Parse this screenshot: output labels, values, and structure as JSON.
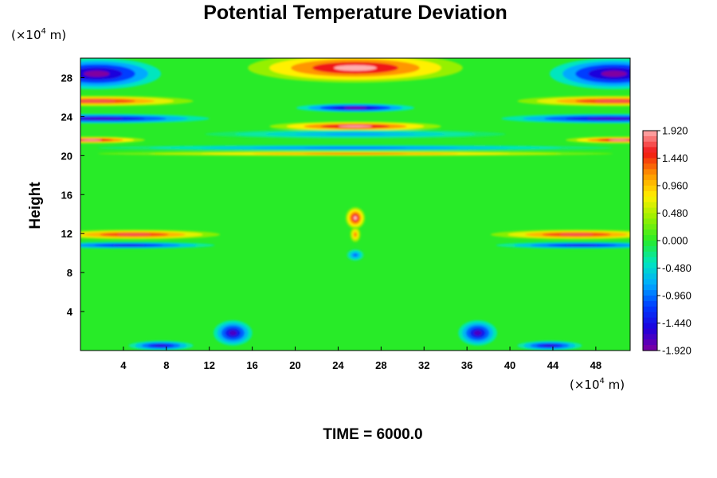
{
  "chart_data": {
    "type": "heatmap",
    "title": "Potential Temperature Deviation",
    "ylabel": "Height",
    "xlabel": "",
    "x_unit": {
      "prefix": "(×10",
      "exp": "4",
      "suffix": " m)"
    },
    "y_unit": {
      "prefix": "(×10",
      "exp": "4",
      "suffix": " m)"
    },
    "xlim": [
      0,
      51.2
    ],
    "ylim": [
      0,
      30
    ],
    "xticks": [
      "4",
      "8",
      "12",
      "16",
      "20",
      "24",
      "28",
      "32",
      "36",
      "40",
      "44",
      "48"
    ],
    "yticks": [
      "4",
      "8",
      "12",
      "16",
      "20",
      "24",
      "28"
    ],
    "colorbar": {
      "range": [
        -1.92,
        1.92
      ],
      "labels": [
        "1.920",
        "1.440",
        "0.960",
        "0.480",
        "0.000",
        "-0.480",
        "-0.960",
        "-1.440",
        "-1.920"
      ]
    },
    "background_value": 0.0,
    "features": [
      {
        "x": 25.6,
        "y": 29.0,
        "rx": 10.0,
        "ry": 1.5,
        "value": 1.92
      },
      {
        "x": 25.6,
        "y": 24.9,
        "rx": 5.5,
        "ry": 0.45,
        "value": -1.9
      },
      {
        "x": 25.6,
        "y": 23.0,
        "rx": 8.0,
        "ry": 0.5,
        "value": 1.92
      },
      {
        "x": 25.6,
        "y": 22.2,
        "rx": 14.0,
        "ry": 0.45,
        "value": -0.8
      },
      {
        "x": 1.5,
        "y": 28.4,
        "rx": 6.0,
        "ry": 1.6,
        "value": -1.92
      },
      {
        "x": 49.7,
        "y": 28.4,
        "rx": 6.0,
        "ry": 1.6,
        "value": -1.92
      },
      {
        "x": 1.5,
        "y": 25.6,
        "rx": 9.0,
        "ry": 0.55,
        "value": 1.7
      },
      {
        "x": 49.7,
        "y": 25.6,
        "rx": 9.0,
        "ry": 0.55,
        "value": 1.7
      },
      {
        "x": 2.0,
        "y": 23.8,
        "rx": 10.0,
        "ry": 0.5,
        "value": -1.7
      },
      {
        "x": 49.2,
        "y": 23.8,
        "rx": 10.0,
        "ry": 0.5,
        "value": -1.7
      },
      {
        "x": 1.0,
        "y": 21.6,
        "rx": 5.0,
        "ry": 0.35,
        "value": 1.92
      },
      {
        "x": 50.2,
        "y": 21.6,
        "rx": 5.0,
        "ry": 0.35,
        "value": 1.92
      },
      {
        "x": 25.6,
        "y": 20.8,
        "rx": 24.0,
        "ry": 0.3,
        "value": -1.0
      },
      {
        "x": 25.6,
        "y": 20.2,
        "rx": 24.0,
        "ry": 0.25,
        "value": 1.3
      },
      {
        "x": 5.0,
        "y": 11.9,
        "rx": 8.0,
        "ry": 0.5,
        "value": 1.7
      },
      {
        "x": 46.2,
        "y": 11.9,
        "rx": 8.0,
        "ry": 0.5,
        "value": 1.7
      },
      {
        "x": 4.5,
        "y": 10.8,
        "rx": 8.0,
        "ry": 0.35,
        "value": -1.5
      },
      {
        "x": 46.7,
        "y": 10.8,
        "rx": 8.0,
        "ry": 0.35,
        "value": -1.5
      },
      {
        "x": 25.6,
        "y": 13.6,
        "rx": 0.9,
        "ry": 1.1,
        "value": 1.92
      },
      {
        "x": 25.6,
        "y": 11.9,
        "rx": 0.5,
        "ry": 0.8,
        "value": 1.2
      },
      {
        "x": 25.6,
        "y": 9.8,
        "rx": 0.8,
        "ry": 0.6,
        "value": -1.0
      },
      {
        "x": 14.2,
        "y": 1.8,
        "rx": 1.8,
        "ry": 1.3,
        "value": -1.7
      },
      {
        "x": 37.0,
        "y": 1.8,
        "rx": 1.8,
        "ry": 1.3,
        "value": -1.7
      },
      {
        "x": 7.5,
        "y": 0.5,
        "rx": 3.0,
        "ry": 0.5,
        "value": -1.6
      },
      {
        "x": 43.7,
        "y": 0.5,
        "rx": 3.0,
        "ry": 0.5,
        "value": -1.6
      }
    ]
  },
  "footer": {
    "time_label": "TIME = 6000.0"
  }
}
